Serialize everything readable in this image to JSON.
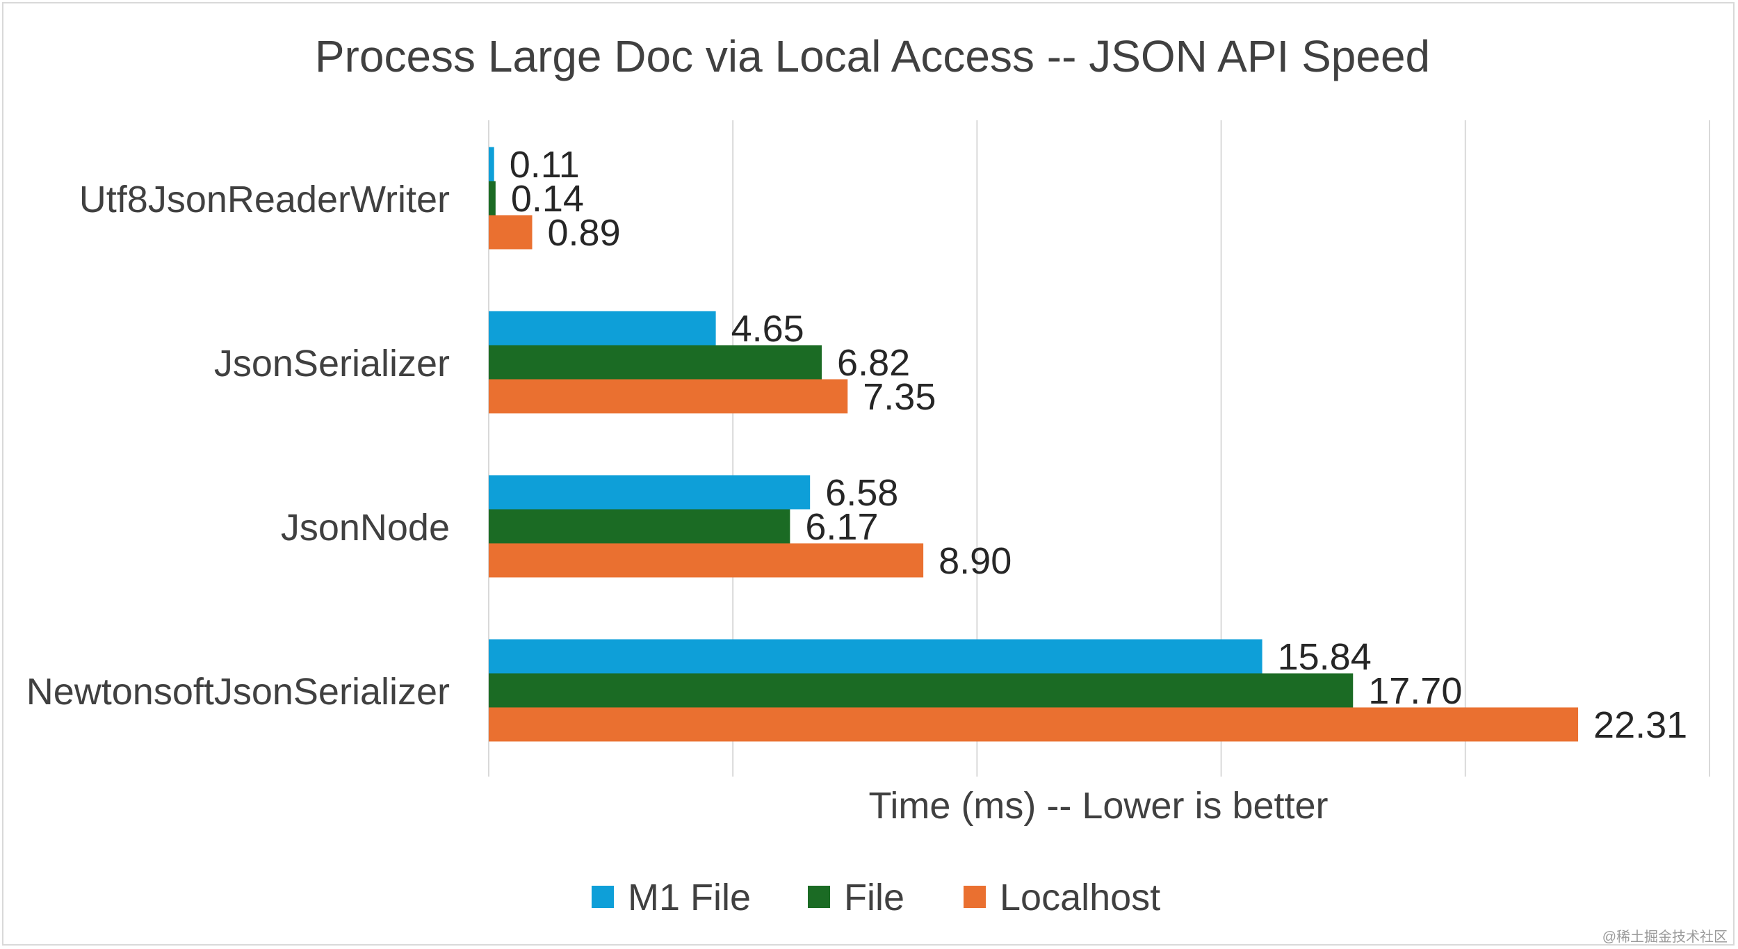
{
  "chart_data": {
    "type": "bar",
    "orientation": "horizontal",
    "title": "Process Large Doc via Local Access -- JSON API Speed",
    "xlabel": "Time (ms) -- Lower is better",
    "ylabel": "",
    "categories": [
      "Utf8JsonReaderWriter",
      "JsonSerializer",
      "JsonNode",
      "NewtonsoftJsonSerializer"
    ],
    "series": [
      {
        "name": "M1 File",
        "color": "#0e9fd8",
        "values": [
          0.11,
          4.65,
          6.58,
          15.84
        ],
        "labels": [
          "0.11",
          "4.65",
          "6.58",
          "15.84"
        ]
      },
      {
        "name": "File",
        "color": "#1b6b24",
        "values": [
          0.14,
          6.82,
          6.17,
          17.7
        ],
        "labels": [
          "0.14",
          "6.82",
          "6.17",
          "17.70"
        ]
      },
      {
        "name": "Localhost",
        "color": "#ea7030",
        "values": [
          0.89,
          7.35,
          8.9,
          22.31
        ],
        "labels": [
          "0.89",
          "7.35",
          "8.90",
          "22.31"
        ]
      }
    ],
    "xlim": [
      0,
      25
    ],
    "grid": true,
    "tick_labels_visible": false,
    "legend_position": "bottom",
    "watermark": "@稀土掘金技术社区"
  }
}
